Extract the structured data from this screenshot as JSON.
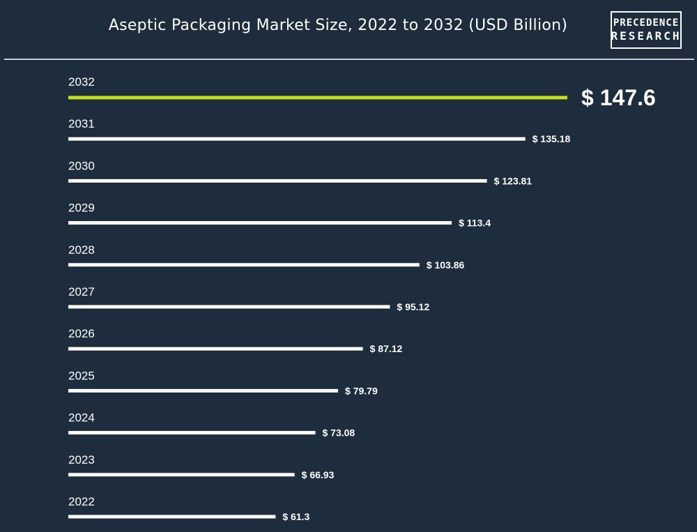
{
  "header": {
    "title": "Aseptic Packaging Market Size, 2022 to 2032 (USD Billion)",
    "logo_line1": "PRECEDENCE",
    "logo_line2": "RESEARCH"
  },
  "colors": {
    "background": "#1d2d3e",
    "bar": "#ffffff",
    "highlight_bar": "#c5de1d",
    "text": "#ffffff"
  },
  "chart_data": {
    "type": "bar",
    "orientation": "horizontal",
    "title": "Aseptic Packaging Market Size, 2022 to 2032 (USD Billion)",
    "categories": [
      "2032",
      "2031",
      "2030",
      "2029",
      "2028",
      "2027",
      "2026",
      "2025",
      "2024",
      "2023",
      "2022"
    ],
    "values": [
      147.6,
      135.18,
      123.81,
      113.4,
      103.86,
      95.12,
      87.12,
      79.79,
      73.08,
      66.93,
      61.3
    ],
    "labels": [
      "$ 147.6",
      "$ 135.18",
      "$ 123.81",
      "$ 113.4",
      "$ 103.86",
      "$ 95.12",
      "$ 87.12",
      "$ 79.79",
      "$ 73.08",
      "$ 66.93",
      "$ 61.3"
    ],
    "highlight_category": "2032",
    "xlabel": "",
    "ylabel": "",
    "grid": false
  }
}
